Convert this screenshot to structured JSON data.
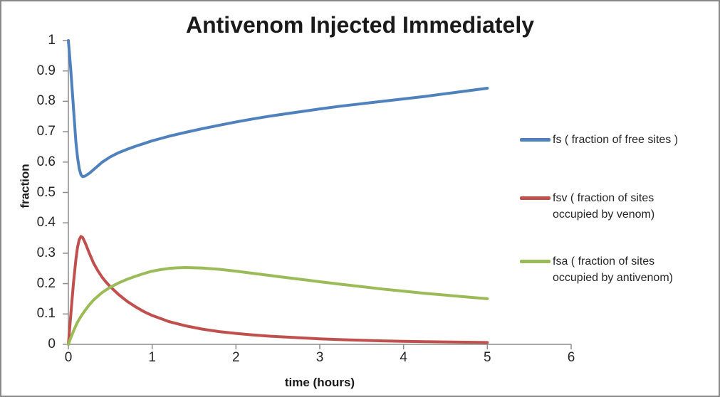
{
  "title": "Antivenom Injected Immediately",
  "colors": {
    "axis": "#8C8C8C",
    "border": "#898989",
    "text": "#262626",
    "series_blue": "#4F81BD",
    "series_red": "#C0504D",
    "series_green": "#9BBB59"
  },
  "legend": {
    "items": [
      {
        "lines": [
          "fs ( fraction of free sites )"
        ]
      },
      {
        "lines": [
          "fsv ( fraction of sites",
          "occupied by venom)"
        ]
      },
      {
        "lines": [
          "fsa ( fraction of sites",
          "occupied by antivenom)"
        ]
      }
    ]
  },
  "chart_data": {
    "type": "line",
    "title": "Antivenom Injected Immediately",
    "xlabel": "time (hours)",
    "ylabel": "fraction",
    "xlim": [
      0,
      6
    ],
    "ylim": [
      0,
      1
    ],
    "x_ticks": [
      "0",
      "1",
      "2",
      "3",
      "4",
      "5",
      "6"
    ],
    "y_ticks": [
      "0",
      "0.1",
      "0.2",
      "0.3",
      "0.4",
      "0.5",
      "0.6",
      "0.7",
      "0.8",
      "0.9",
      "1"
    ],
    "grid": false,
    "legend_position": "right",
    "series": [
      {
        "name": "fs ( fraction of free sites )",
        "color": "#4F81BD",
        "points": [
          [
            0,
            1.0
          ],
          [
            0.03,
            0.9
          ],
          [
            0.06,
            0.78
          ],
          [
            0.09,
            0.665
          ],
          [
            0.11,
            0.615
          ],
          [
            0.13,
            0.578
          ],
          [
            0.15,
            0.558
          ],
          [
            0.17,
            0.552
          ],
          [
            0.2,
            0.554
          ],
          [
            0.25,
            0.563
          ],
          [
            0.3,
            0.575
          ],
          [
            0.35,
            0.587
          ],
          [
            0.4,
            0.599
          ],
          [
            0.45,
            0.608
          ],
          [
            0.5,
            0.617
          ],
          [
            0.6,
            0.631
          ],
          [
            0.7,
            0.642
          ],
          [
            0.8,
            0.652
          ],
          [
            0.9,
            0.661
          ],
          [
            1.0,
            0.67
          ],
          [
            1.2,
            0.685
          ],
          [
            1.4,
            0.698
          ],
          [
            1.6,
            0.71
          ],
          [
            1.8,
            0.721
          ],
          [
            2.0,
            0.732
          ],
          [
            2.2,
            0.742
          ],
          [
            2.4,
            0.751
          ],
          [
            2.6,
            0.759
          ],
          [
            2.8,
            0.767
          ],
          [
            3.0,
            0.775
          ],
          [
            3.25,
            0.784
          ],
          [
            3.5,
            0.792
          ],
          [
            3.75,
            0.8
          ],
          [
            4.0,
            0.808
          ],
          [
            4.25,
            0.816
          ],
          [
            4.5,
            0.825
          ],
          [
            4.75,
            0.834
          ],
          [
            5.0,
            0.843
          ]
        ]
      },
      {
        "name": "fsv ( fraction of sites occupied by venom)",
        "color": "#C0504D",
        "points": [
          [
            0,
            0
          ],
          [
            0.03,
            0.1
          ],
          [
            0.06,
            0.2
          ],
          [
            0.09,
            0.28
          ],
          [
            0.11,
            0.32
          ],
          [
            0.13,
            0.345
          ],
          [
            0.15,
            0.355
          ],
          [
            0.17,
            0.352
          ],
          [
            0.2,
            0.335
          ],
          [
            0.25,
            0.3
          ],
          [
            0.3,
            0.268
          ],
          [
            0.35,
            0.243
          ],
          [
            0.4,
            0.222
          ],
          [
            0.45,
            0.205
          ],
          [
            0.5,
            0.19
          ],
          [
            0.6,
            0.164
          ],
          [
            0.7,
            0.142
          ],
          [
            0.8,
            0.124
          ],
          [
            0.9,
            0.108
          ],
          [
            1.0,
            0.095
          ],
          [
            1.2,
            0.075
          ],
          [
            1.4,
            0.061
          ],
          [
            1.6,
            0.05
          ],
          [
            1.8,
            0.042
          ],
          [
            2.0,
            0.036
          ],
          [
            2.2,
            0.031
          ],
          [
            2.4,
            0.027
          ],
          [
            2.6,
            0.024
          ],
          [
            2.8,
            0.021
          ],
          [
            3.0,
            0.018
          ],
          [
            3.25,
            0.0155
          ],
          [
            3.5,
            0.0135
          ],
          [
            3.75,
            0.0115
          ],
          [
            4.0,
            0.01
          ],
          [
            4.25,
            0.009
          ],
          [
            4.5,
            0.008
          ],
          [
            4.75,
            0.007
          ],
          [
            5.0,
            0.006
          ]
        ]
      },
      {
        "name": "fsa ( fraction of sites occupied by antivenom)",
        "color": "#9BBB59",
        "points": [
          [
            0,
            0
          ],
          [
            0.03,
            0.022
          ],
          [
            0.06,
            0.043
          ],
          [
            0.09,
            0.062
          ],
          [
            0.11,
            0.073
          ],
          [
            0.13,
            0.083
          ],
          [
            0.15,
            0.092
          ],
          [
            0.17,
            0.1
          ],
          [
            0.2,
            0.112
          ],
          [
            0.25,
            0.13
          ],
          [
            0.3,
            0.146
          ],
          [
            0.35,
            0.158
          ],
          [
            0.4,
            0.17
          ],
          [
            0.45,
            0.179
          ],
          [
            0.5,
            0.188
          ],
          [
            0.6,
            0.202
          ],
          [
            0.7,
            0.214
          ],
          [
            0.8,
            0.224
          ],
          [
            0.9,
            0.233
          ],
          [
            1.0,
            0.241
          ],
          [
            1.1,
            0.246
          ],
          [
            1.2,
            0.25
          ],
          [
            1.3,
            0.252
          ],
          [
            1.4,
            0.253
          ],
          [
            1.5,
            0.252
          ],
          [
            1.6,
            0.251
          ],
          [
            1.8,
            0.247
          ],
          [
            2.0,
            0.241
          ],
          [
            2.2,
            0.234
          ],
          [
            2.4,
            0.227
          ],
          [
            2.6,
            0.22
          ],
          [
            2.8,
            0.213
          ],
          [
            3.0,
            0.206
          ],
          [
            3.25,
            0.198
          ],
          [
            3.5,
            0.19
          ],
          [
            3.75,
            0.182
          ],
          [
            4.0,
            0.175
          ],
          [
            4.25,
            0.168
          ],
          [
            4.5,
            0.162
          ],
          [
            4.75,
            0.156
          ],
          [
            5.0,
            0.15
          ]
        ]
      }
    ]
  }
}
